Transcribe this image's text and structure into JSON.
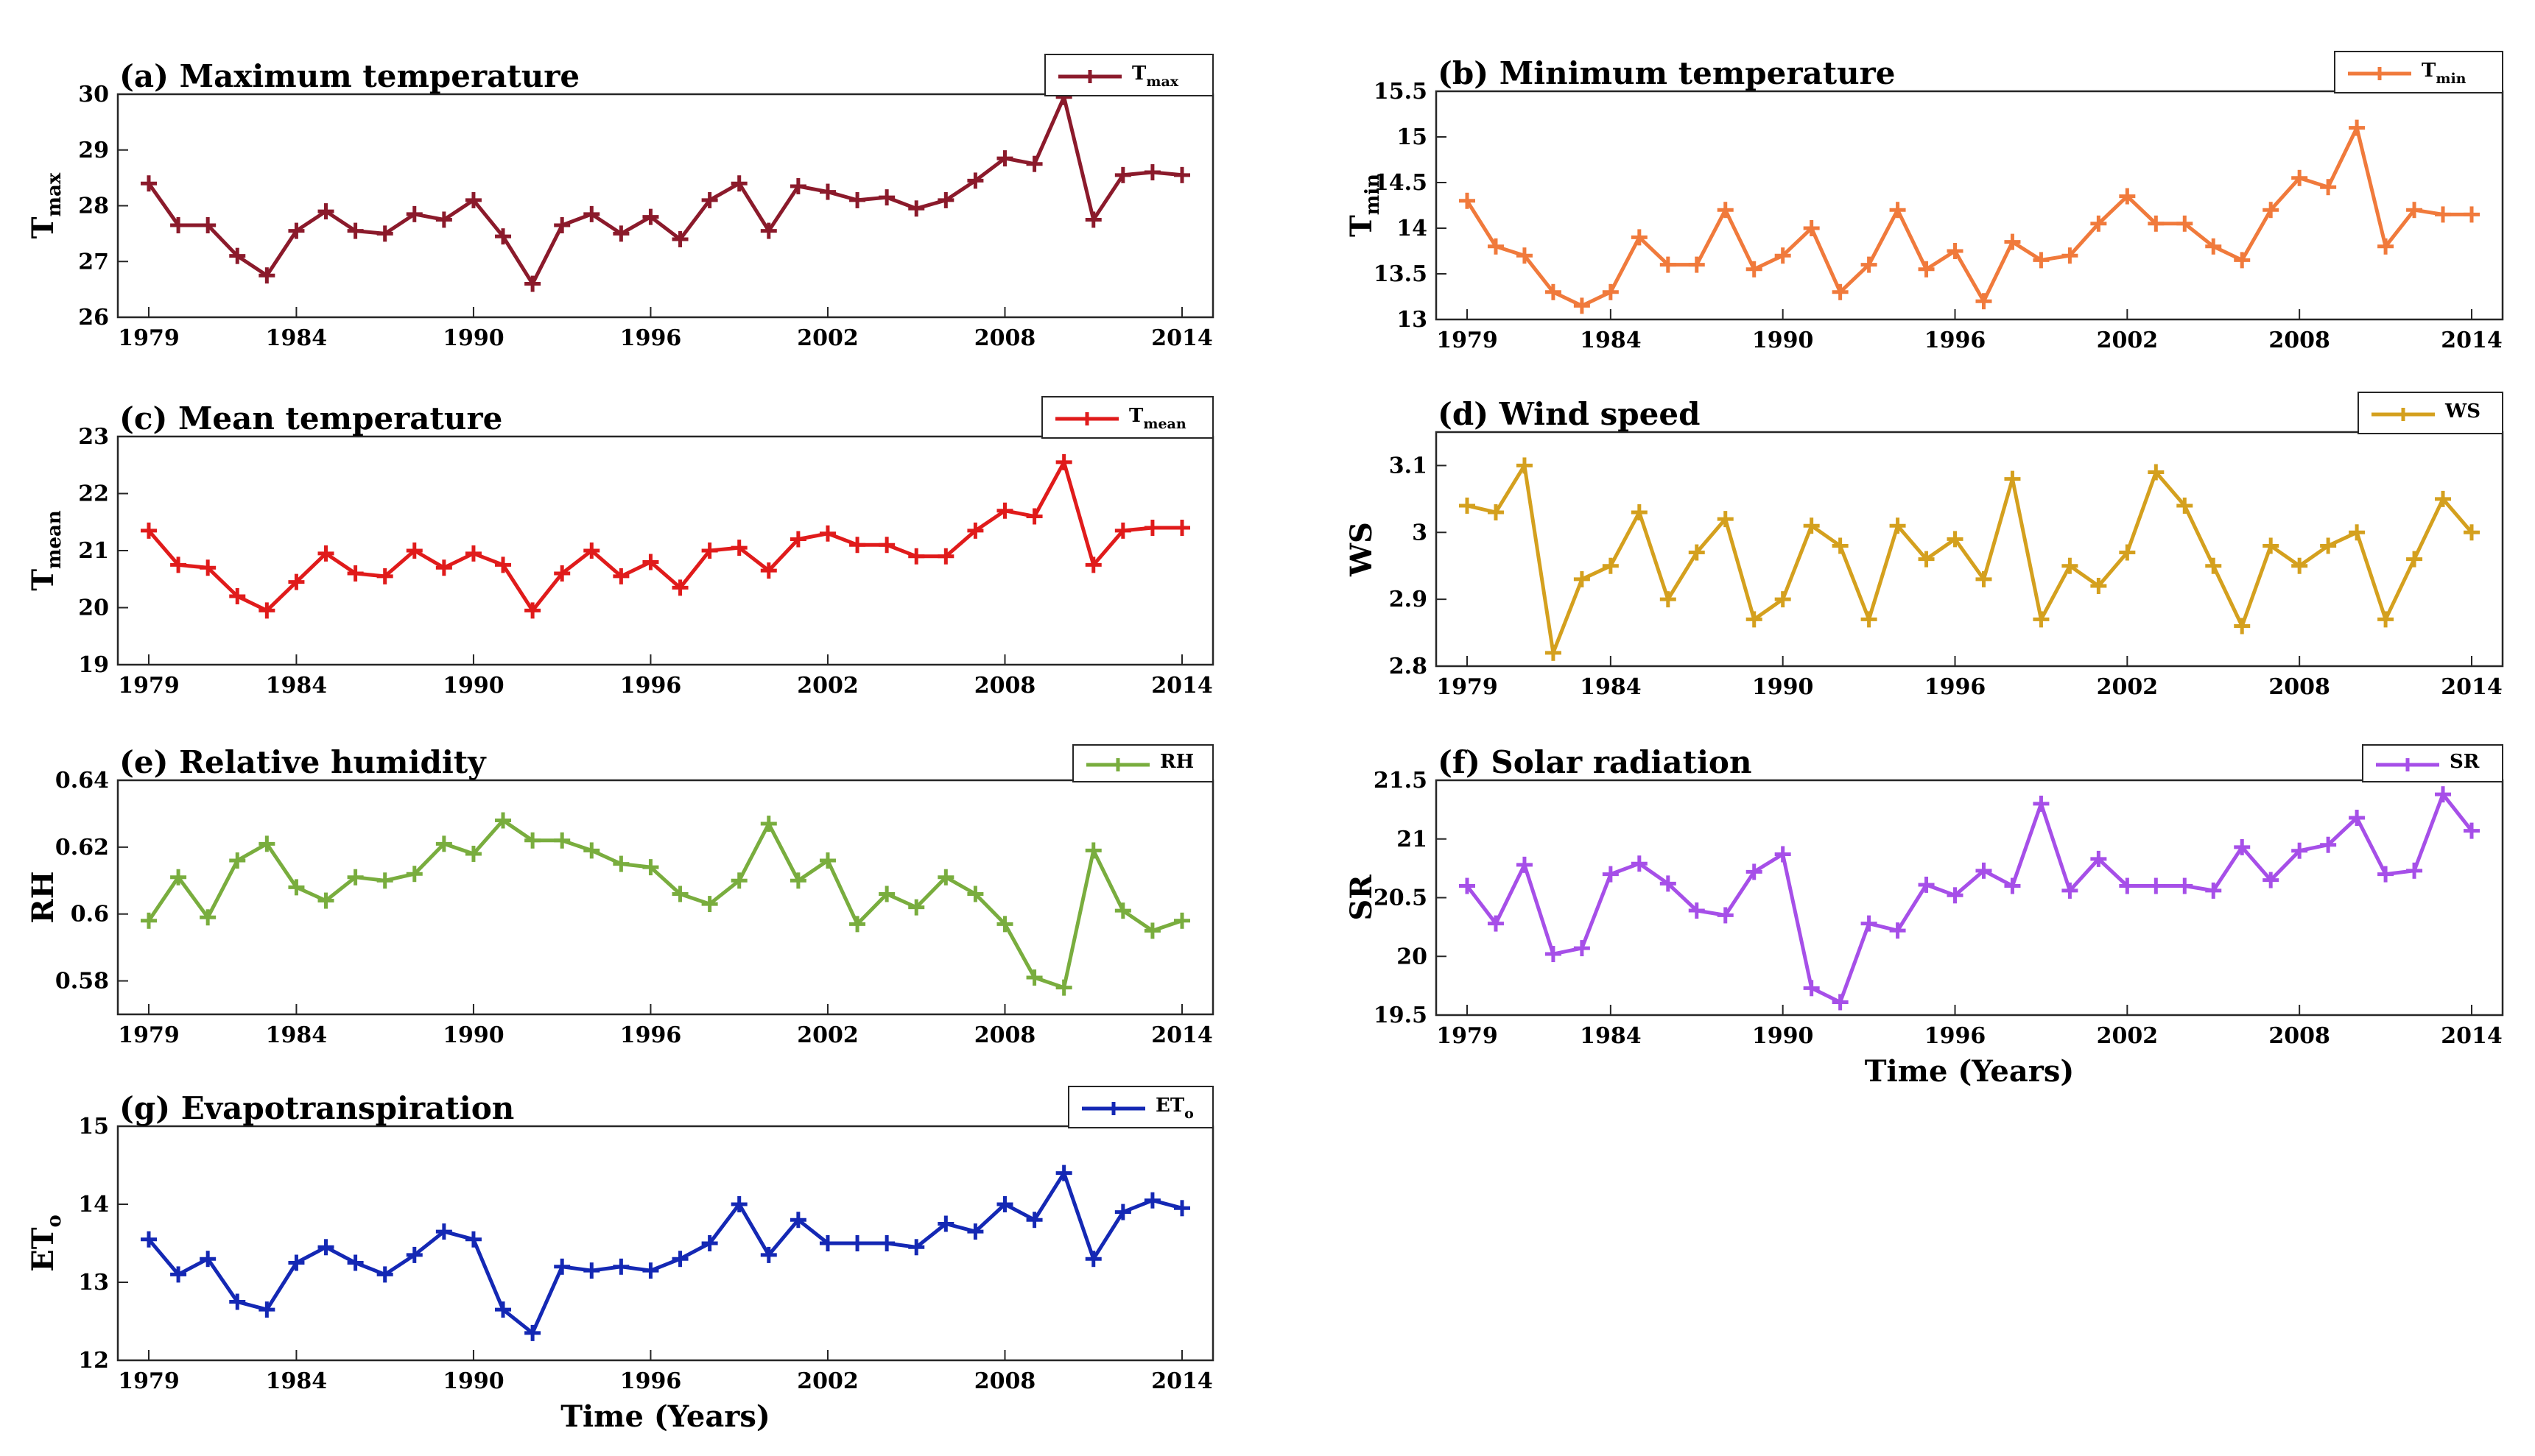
{
  "chart_data": [
    {
      "id": "a",
      "type": "line",
      "title": "(a) Maximum temperature",
      "ylabel_base": "T",
      "ylabel_sub": "max",
      "legend_base": "T",
      "legend_sub": "max",
      "xlabel": "",
      "color": "#8B1A2B",
      "ylim": [
        26,
        30
      ],
      "yticks": [
        "26",
        "27",
        "28",
        "29",
        "30"
      ],
      "xlim": [
        1979,
        2014
      ],
      "xticks": [
        "1979",
        "1984",
        "1990",
        "1996",
        "2002",
        "2008",
        "2014"
      ],
      "x": [
        1979,
        1980,
        1981,
        1982,
        1983,
        1984,
        1985,
        1986,
        1987,
        1988,
        1989,
        1990,
        1991,
        1992,
        1993,
        1994,
        1995,
        1996,
        1997,
        1998,
        1999,
        2000,
        2001,
        2002,
        2003,
        2004,
        2005,
        2006,
        2007,
        2008,
        2009,
        2010,
        2011,
        2012,
        2013,
        2014
      ],
      "y": [
        28.4,
        27.65,
        27.65,
        27.1,
        26.75,
        27.55,
        27.9,
        27.55,
        27.5,
        27.85,
        27.75,
        28.1,
        27.45,
        26.6,
        27.65,
        27.85,
        27.5,
        27.8,
        27.4,
        28.1,
        28.4,
        27.55,
        28.35,
        28.25,
        28.1,
        28.15,
        27.95,
        28.1,
        28.45,
        28.85,
        28.75,
        29.95,
        27.75,
        28.55,
        28.6,
        28.55
      ]
    },
    {
      "id": "b",
      "type": "line",
      "title": "(b) Minimum temperature",
      "ylabel_base": "T",
      "ylabel_sub": "min",
      "legend_base": "T",
      "legend_sub": "min",
      "xlabel": "",
      "color": "#F07A3C",
      "ylim": [
        13,
        15.5
      ],
      "yticks": [
        "13",
        "13.5",
        "14",
        "14.5",
        "15",
        "15.5"
      ],
      "xlim": [
        1979,
        2014
      ],
      "xticks": [
        "1979",
        "1984",
        "1990",
        "1996",
        "2002",
        "2008",
        "2014"
      ],
      "x": [
        1979,
        1980,
        1981,
        1982,
        1983,
        1984,
        1985,
        1986,
        1987,
        1988,
        1989,
        1990,
        1991,
        1992,
        1993,
        1994,
        1995,
        1996,
        1997,
        1998,
        1999,
        2000,
        2001,
        2002,
        2003,
        2004,
        2005,
        2006,
        2007,
        2008,
        2009,
        2010,
        2011,
        2012,
        2013,
        2014
      ],
      "y": [
        14.3,
        13.8,
        13.7,
        13.3,
        13.15,
        13.3,
        13.9,
        13.6,
        13.6,
        14.2,
        13.55,
        13.7,
        14.0,
        13.3,
        13.6,
        14.2,
        13.55,
        13.75,
        13.2,
        13.85,
        13.65,
        13.7,
        14.05,
        14.35,
        14.05,
        14.05,
        13.8,
        13.65,
        14.2,
        14.55,
        14.45,
        15.1,
        13.8,
        14.2,
        14.15,
        14.15
      ]
    },
    {
      "id": "c",
      "type": "line",
      "title": "(c) Mean temperature",
      "ylabel_base": "T",
      "ylabel_sub": "mean",
      "legend_base": "T",
      "legend_sub": "mean",
      "xlabel": "",
      "color": "#E01B1B",
      "ylim": [
        19,
        23
      ],
      "yticks": [
        "19",
        "20",
        "21",
        "22",
        "23"
      ],
      "xlim": [
        1979,
        2014
      ],
      "xticks": [
        "1979",
        "1984",
        "1990",
        "1996",
        "2002",
        "2008",
        "2014"
      ],
      "x": [
        1979,
        1980,
        1981,
        1982,
        1983,
        1984,
        1985,
        1986,
        1987,
        1988,
        1989,
        1990,
        1991,
        1992,
        1993,
        1994,
        1995,
        1996,
        1997,
        1998,
        1999,
        2000,
        2001,
        2002,
        2003,
        2004,
        2005,
        2006,
        2007,
        2008,
        2009,
        2010,
        2011,
        2012,
        2013,
        2014
      ],
      "y": [
        21.35,
        20.75,
        20.7,
        20.2,
        19.95,
        20.45,
        20.95,
        20.6,
        20.55,
        21.0,
        20.7,
        20.95,
        20.75,
        19.95,
        20.6,
        21.0,
        20.55,
        20.8,
        20.35,
        21.0,
        21.05,
        20.65,
        21.2,
        21.3,
        21.1,
        21.1,
        20.9,
        20.9,
        21.35,
        21.7,
        21.6,
        22.55,
        20.75,
        21.35,
        21.4,
        21.4
      ]
    },
    {
      "id": "d",
      "type": "line",
      "title": "(d) Wind speed",
      "ylabel_base": "WS",
      "ylabel_sub": "",
      "legend_base": "WS",
      "legend_sub": "",
      "xlabel": "",
      "color": "#D4A01E",
      "ylim": [
        2.8,
        3.15
      ],
      "yticks": [
        "2.8",
        "2.9",
        "3",
        "3.1"
      ],
      "xlim": [
        1979,
        2014
      ],
      "xticks": [
        "1979",
        "1984",
        "1990",
        "1996",
        "2002",
        "2008",
        "2014"
      ],
      "x": [
        1979,
        1980,
        1981,
        1982,
        1983,
        1984,
        1985,
        1986,
        1987,
        1988,
        1989,
        1990,
        1991,
        1992,
        1993,
        1994,
        1995,
        1996,
        1997,
        1998,
        1999,
        2000,
        2001,
        2002,
        2003,
        2004,
        2005,
        2006,
        2007,
        2008,
        2009,
        2010,
        2011,
        2012,
        2013,
        2014
      ],
      "y": [
        3.04,
        3.03,
        3.1,
        2.82,
        2.93,
        2.95,
        3.03,
        2.9,
        2.97,
        3.02,
        2.87,
        2.9,
        3.01,
        2.98,
        2.87,
        3.01,
        2.96,
        2.99,
        2.93,
        3.08,
        2.87,
        2.95,
        2.92,
        2.97,
        3.09,
        3.04,
        2.95,
        2.86,
        2.98,
        2.95,
        2.98,
        3.0,
        2.87,
        2.96,
        3.05,
        3.0
      ]
    },
    {
      "id": "e",
      "type": "line",
      "title": "(e) Relative humidity",
      "ylabel_base": "RH",
      "ylabel_sub": "",
      "legend_base": "RH",
      "legend_sub": "",
      "xlabel": "",
      "color": "#79AD3E",
      "ylim": [
        0.57,
        0.64
      ],
      "yticks": [
        "0.58",
        "0.6",
        "0.62",
        "0.64"
      ],
      "xlim": [
        1979,
        2014
      ],
      "xticks": [
        "1979",
        "1984",
        "1990",
        "1996",
        "2002",
        "2008",
        "2014"
      ],
      "x": [
        1979,
        1980,
        1981,
        1982,
        1983,
        1984,
        1985,
        1986,
        1987,
        1988,
        1989,
        1990,
        1991,
        1992,
        1993,
        1994,
        1995,
        1996,
        1997,
        1998,
        1999,
        2000,
        2001,
        2002,
        2003,
        2004,
        2005,
        2006,
        2007,
        2008,
        2009,
        2010,
        2011,
        2012,
        2013,
        2014
      ],
      "y": [
        0.598,
        0.611,
        0.599,
        0.616,
        0.621,
        0.608,
        0.604,
        0.611,
        0.61,
        0.612,
        0.621,
        0.618,
        0.628,
        0.622,
        0.622,
        0.619,
        0.615,
        0.614,
        0.606,
        0.603,
        0.61,
        0.627,
        0.61,
        0.616,
        0.597,
        0.606,
        0.602,
        0.611,
        0.606,
        0.597,
        0.581,
        0.578,
        0.619,
        0.601,
        0.595,
        0.598
      ]
    },
    {
      "id": "f",
      "type": "line",
      "title": "(f) Solar radiation",
      "ylabel_base": "SR",
      "ylabel_sub": "",
      "legend_base": "SR",
      "legend_sub": "",
      "xlabel": "Time (Years)",
      "color": "#A64FE8",
      "ylim": [
        19.5,
        21.5
      ],
      "yticks": [
        "19.5",
        "20",
        "20.5",
        "21",
        "21.5"
      ],
      "xlim": [
        1979,
        2014
      ],
      "xticks": [
        "1979",
        "1984",
        "1990",
        "1996",
        "2002",
        "2008",
        "2014"
      ],
      "x": [
        1979,
        1980,
        1981,
        1982,
        1983,
        1984,
        1985,
        1986,
        1987,
        1988,
        1989,
        1990,
        1991,
        1992,
        1993,
        1994,
        1995,
        1996,
        1997,
        1998,
        1999,
        2000,
        2001,
        2002,
        2003,
        2004,
        2005,
        2006,
        2007,
        2008,
        2009,
        2010,
        2011,
        2012,
        2013,
        2014
      ],
      "y": [
        20.6,
        20.28,
        20.78,
        20.02,
        20.07,
        20.7,
        20.79,
        20.62,
        20.39,
        20.35,
        20.72,
        20.87,
        19.73,
        19.61,
        20.28,
        20.22,
        20.61,
        20.52,
        20.73,
        20.6,
        21.3,
        20.56,
        20.83,
        20.6,
        20.6,
        20.6,
        20.56,
        20.93,
        20.65,
        20.9,
        20.95,
        21.18,
        20.7,
        20.73,
        21.38,
        21.07
      ]
    },
    {
      "id": "g",
      "type": "line",
      "title": "(g) Evapotranspiration",
      "ylabel_base": "ET",
      "ylabel_sub": "o",
      "legend_base": "ET",
      "legend_sub": "o",
      "xlabel": "Time (Years)",
      "color": "#1428B4",
      "ylim": [
        12,
        15
      ],
      "yticks": [
        "12",
        "13",
        "14",
        "15"
      ],
      "xlim": [
        1979,
        2014
      ],
      "xticks": [
        "1979",
        "1984",
        "1990",
        "1996",
        "2002",
        "2008",
        "2014"
      ],
      "x": [
        1979,
        1980,
        1981,
        1982,
        1983,
        1984,
        1985,
        1986,
        1987,
        1988,
        1989,
        1990,
        1991,
        1992,
        1993,
        1994,
        1995,
        1996,
        1997,
        1998,
        1999,
        2000,
        2001,
        2002,
        2003,
        2004,
        2005,
        2006,
        2007,
        2008,
        2009,
        2010,
        2011,
        2012,
        2013,
        2014
      ],
      "y": [
        13.55,
        13.1,
        13.3,
        12.75,
        12.65,
        13.25,
        13.45,
        13.25,
        13.1,
        13.35,
        13.65,
        13.55,
        12.65,
        12.35,
        13.2,
        13.15,
        13.2,
        13.15,
        13.3,
        13.5,
        14.0,
        13.35,
        13.8,
        13.5,
        13.5,
        13.5,
        13.45,
        13.75,
        13.65,
        14.0,
        13.8,
        14.4,
        13.3,
        13.9,
        14.05,
        13.95
      ]
    }
  ]
}
